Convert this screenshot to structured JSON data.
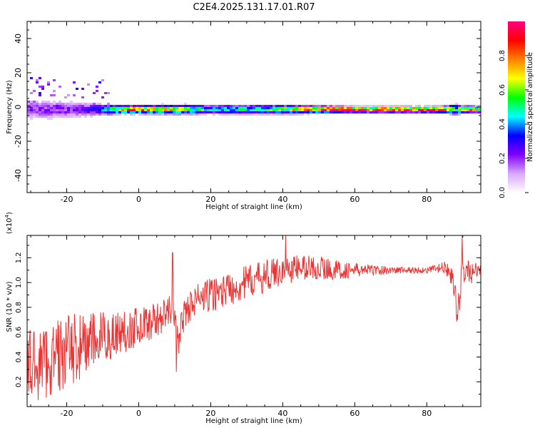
{
  "title": "C2E4.2025.131.17.01.R07",
  "chart_data": [
    {
      "type": "heatmap",
      "xlabel": "Height of straight line (km)",
      "ylabel": "Frequency (Hz)",
      "xlim": [
        -31,
        95
      ],
      "ylim": [
        -50,
        50
      ],
      "x_ticks": [
        -20,
        0,
        20,
        40,
        60,
        80
      ],
      "y_ticks": [
        -40,
        -20,
        0,
        20,
        40
      ],
      "dominant_frequency_hz": -1.5,
      "band_profile": {
        "x": [
          -31,
          -25,
          -20,
          -15,
          -10,
          -5,
          0,
          10,
          20,
          30,
          40,
          50,
          60,
          70,
          80,
          86,
          88,
          90,
          95
        ],
        "intensity": [
          0.2,
          0.2,
          0.2,
          0.22,
          0.38,
          0.75,
          0.8,
          0.7,
          0.45,
          0.5,
          0.55,
          0.9,
          0.95,
          0.95,
          0.95,
          0.8,
          0.45,
          0.8,
          0.6
        ],
        "spread_hz": [
          9,
          9,
          8,
          7,
          5,
          3.5,
          3.5,
          4,
          4,
          4,
          4,
          3,
          2.5,
          2.5,
          2.5,
          3,
          5,
          3,
          3
        ]
      },
      "colorbar": {
        "label": "Normalized spectral amplitude",
        "range": [
          0,
          1
        ],
        "ticks": [
          "0.0",
          "0.2",
          "0.4",
          "0.6",
          "0.8"
        ],
        "colors": [
          "#ffffff",
          "#d9a8ff",
          "#8000ff",
          "#0000ff",
          "#00ffff",
          "#00ff00",
          "#ffff00",
          "#ff8000",
          "#ff0000",
          "#ff0080"
        ]
      }
    },
    {
      "type": "line",
      "xlabel": "Height of straight line (km)",
      "ylabel": "SNR (10 * v/v)",
      "y_multiplier": "(x10",
      "y_multiplier_exp": "4",
      "xlim": [
        -31,
        95
      ],
      "ylim": [
        0.0,
        1.38
      ],
      "x_ticks": [
        -20,
        0,
        20,
        40,
        60,
        80
      ],
      "y_ticks": [
        "0.2",
        "0.4",
        "0.6",
        "0.8",
        "1.0",
        "1.2"
      ],
      "color": "#ee3333",
      "trend": {
        "x": [
          -31,
          -25,
          -20,
          -15,
          -10,
          -5,
          0,
          5,
          8,
          9.5,
          11,
          12,
          15,
          20,
          25,
          30,
          35,
          40,
          45,
          50,
          55,
          60,
          65,
          70,
          75,
          80,
          85,
          87,
          88.5,
          90,
          92,
          95
        ],
        "y": [
          0.33,
          0.37,
          0.44,
          0.5,
          0.55,
          0.6,
          0.65,
          0.7,
          0.75,
          0.8,
          0.5,
          0.7,
          0.85,
          0.9,
          0.95,
          1.0,
          1.05,
          1.1,
          1.12,
          1.12,
          1.1,
          1.1,
          1.1,
          1.1,
          1.1,
          1.1,
          1.12,
          1.05,
          0.75,
          1.1,
          1.08,
          1.1
        ]
      },
      "noise_amplitude": {
        "x": [
          -31,
          -20,
          -10,
          0,
          10,
          20,
          30,
          40,
          50,
          60,
          70,
          80,
          85,
          90,
          95
        ],
        "y": [
          0.32,
          0.3,
          0.22,
          0.16,
          0.12,
          0.14,
          0.14,
          0.12,
          0.1,
          0.06,
          0.03,
          0.025,
          0.05,
          0.14,
          0.04
        ]
      },
      "spikes": [
        {
          "x": 9.4,
          "y": 1.24
        },
        {
          "x": 10.4,
          "y": 0.28
        },
        {
          "x": 40.8,
          "y": 1.38
        },
        {
          "x": 88.6,
          "y": 0.7
        },
        {
          "x": 89.8,
          "y": 1.38
        }
      ]
    }
  ]
}
